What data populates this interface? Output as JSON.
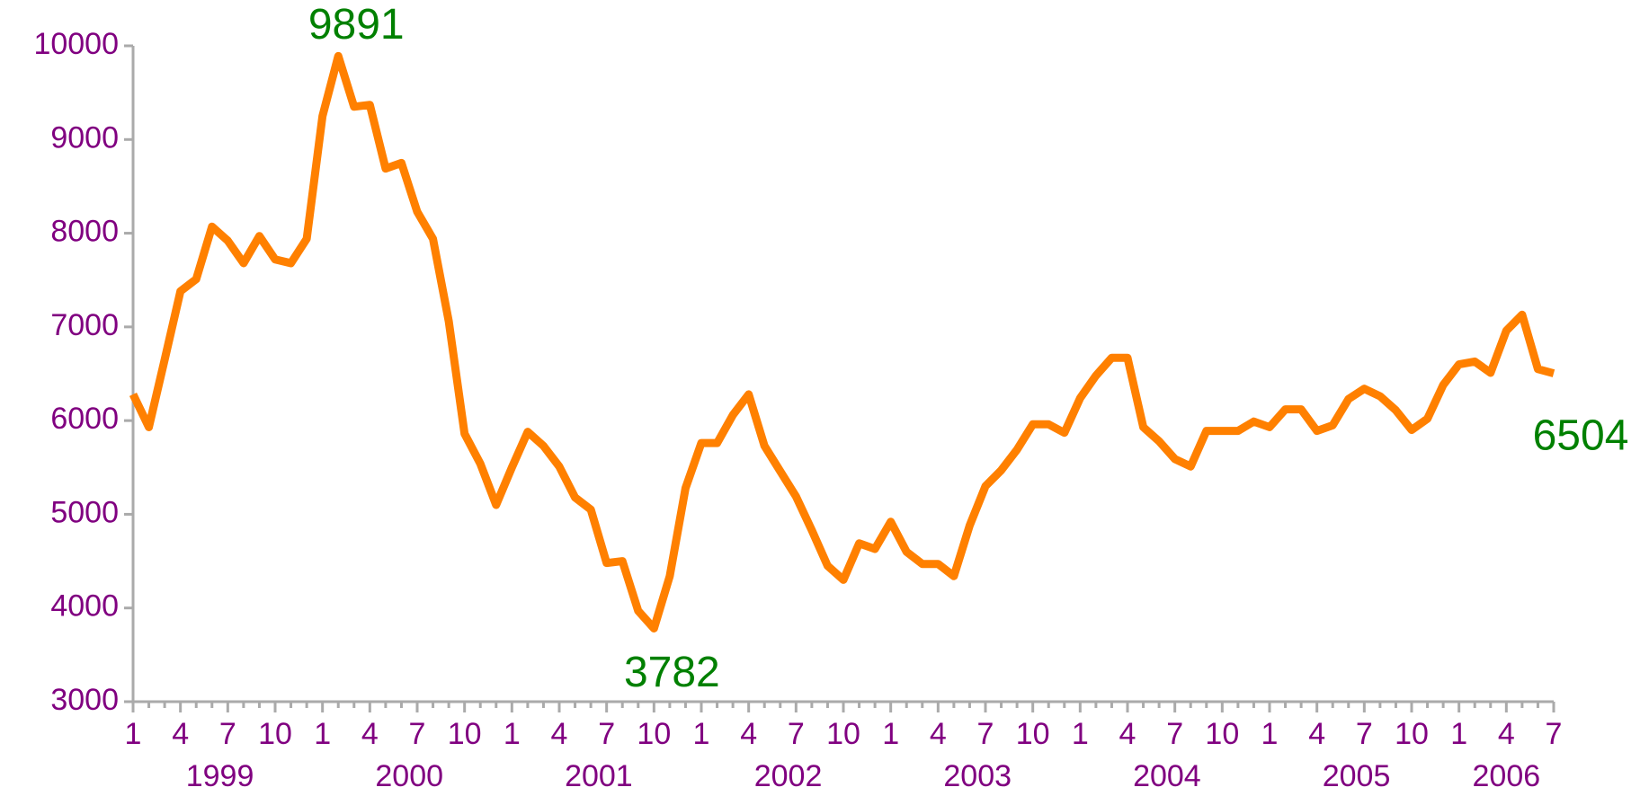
{
  "chart_data": {
    "type": "line",
    "categories": [
      "1",
      null,
      null,
      "4",
      null,
      null,
      "7",
      null,
      null,
      "10",
      null,
      null,
      "1",
      null,
      null,
      "4",
      null,
      null,
      "7",
      null,
      null,
      "10",
      null,
      null,
      "1",
      null,
      null,
      "4",
      null,
      null,
      "7",
      null,
      null,
      "10",
      null,
      null,
      "1",
      null,
      null,
      "4",
      null,
      null,
      "7",
      null,
      null,
      "10",
      null,
      null,
      "1",
      null,
      null,
      "4",
      null,
      null,
      "7",
      null,
      null,
      "10",
      null,
      null,
      "1",
      null,
      null,
      "4",
      null,
      null,
      "7",
      null,
      null,
      "10",
      null,
      null,
      "1",
      null,
      null,
      "4",
      null,
      null,
      "7",
      null,
      null,
      "10",
      null,
      null,
      "1",
      null,
      null,
      "4",
      null,
      null,
      "7"
    ],
    "years": [
      "1999",
      "2000",
      "2001",
      "2002",
      "2003",
      "2004",
      "2005",
      "2006"
    ],
    "values": [
      6280,
      5930,
      6650,
      7380,
      7510,
      8070,
      7920,
      7680,
      7970,
      7720,
      7680,
      7940,
      9250,
      9891,
      9350,
      9370,
      8690,
      8750,
      8230,
      7940,
      7060,
      5860,
      5540,
      5100,
      5500,
      5880,
      5730,
      5510,
      5180,
      5050,
      4480,
      4500,
      3970,
      3782,
      4340,
      5280,
      5760,
      5760,
      6060,
      6280,
      5730,
      5460,
      5190,
      4830,
      4450,
      4300,
      4690,
      4630,
      4920,
      4600,
      4470,
      4470,
      4340,
      4880,
      5300,
      5470,
      5690,
      5960,
      5960,
      5870,
      6240,
      6480,
      6670,
      6670,
      5930,
      5780,
      5590,
      5510,
      5890,
      5890,
      5890,
      5990,
      5930,
      6120,
      6120,
      5890,
      5950,
      6230,
      6340,
      6260,
      6110,
      5900,
      6020,
      6380,
      6600,
      6630,
      6510,
      6960,
      7130,
      6550,
      6504
    ],
    "value_labels": [
      null,
      null,
      null,
      null,
      null,
      null,
      null,
      null,
      null,
      null,
      null,
      null,
      null,
      "9891",
      null,
      null,
      null,
      null,
      null,
      null,
      null,
      null,
      null,
      null,
      null,
      null,
      null,
      null,
      null,
      null,
      null,
      null,
      null,
      "3782",
      null,
      null,
      null,
      null,
      null,
      null,
      null,
      null,
      null,
      null,
      null,
      null,
      null,
      null,
      null,
      null,
      null,
      null,
      null,
      null,
      null,
      null,
      null,
      null,
      null,
      null,
      null,
      null,
      null,
      null,
      null,
      null,
      null,
      null,
      null,
      null,
      null,
      null,
      null,
      null,
      null,
      null,
      null,
      null,
      null,
      null,
      null,
      null,
      null,
      null,
      null,
      null,
      null,
      null,
      null,
      null,
      "6504"
    ],
    "color": "#ff8000",
    "ylim": [
      3000,
      10000
    ],
    "yticks": [
      3000,
      4000,
      5000,
      6000,
      7000,
      8000,
      9000,
      10000
    ]
  }
}
